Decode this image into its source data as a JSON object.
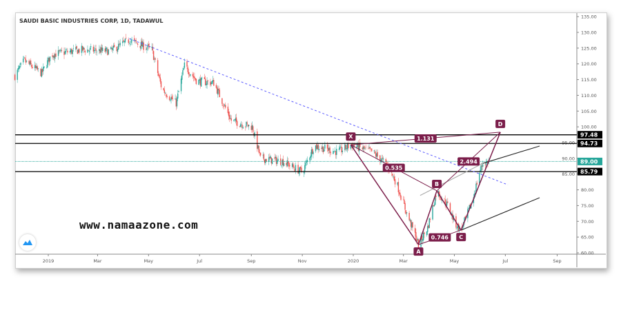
{
  "header": {
    "title": "SAUDI BASIC INDUSTRIES CORP, 1D, TADAWUL"
  },
  "watermark": "www.namaazone.com",
  "colors": {
    "up": "#26a69a",
    "down": "#ef5350",
    "pattern": "#7b1d4a",
    "trendline": "#5b5bff",
    "current": "#26a69a",
    "level": "#000000"
  },
  "icons": {
    "logo": "tradingview-cloud-icon"
  },
  "chart_data": {
    "type": "candlestick",
    "symbol": "SAUDI BASIC INDUSTRIES CORP",
    "interval": "1D",
    "exchange": "TADAWUL",
    "ylim": [
      60,
      135
    ],
    "y_ticks": [
      "135.00",
      "130.00",
      "125.00",
      "120.00",
      "115.00",
      "110.00",
      "105.00",
      "100.00",
      "95.00",
      "90.00",
      "85.00",
      "80.00",
      "75.00",
      "70.00",
      "65.00",
      "60.00"
    ],
    "x_ticks": [
      {
        "label": "2019",
        "date": "2019-01-01"
      },
      {
        "label": "Mar",
        "date": "2019-03-01"
      },
      {
        "label": "May",
        "date": "2019-05-01"
      },
      {
        "label": "Jul",
        "date": "2019-07-01"
      },
      {
        "label": "Sep",
        "date": "2019-09-01"
      },
      {
        "label": "Nov",
        "date": "2019-11-01"
      },
      {
        "label": "2020",
        "date": "2020-01-01"
      },
      {
        "label": "Mar",
        "date": "2020-03-01"
      },
      {
        "label": "May",
        "date": "2020-05-01"
      },
      {
        "label": "Jul",
        "date": "2020-07-01"
      },
      {
        "label": "Sep",
        "date": "2020-09-01"
      }
    ],
    "price_path": [
      [
        "2018-11-22",
        116.2
      ],
      [
        "2018-12-03",
        121
      ],
      [
        "2018-12-24",
        117
      ],
      [
        "2019-01-05",
        123
      ],
      [
        "2019-02-11",
        124.5
      ],
      [
        "2019-03-16",
        124
      ],
      [
        "2019-04-08",
        127.6
      ],
      [
        "2019-05-05",
        124.5
      ],
      [
        "2019-05-17",
        112
      ],
      [
        "2019-06-03",
        107.5
      ],
      [
        "2019-06-13",
        119.5
      ],
      [
        "2019-06-28",
        114.5
      ],
      [
        "2019-07-18",
        114
      ],
      [
        "2019-08-08",
        102
      ],
      [
        "2019-09-02",
        100
      ],
      [
        "2019-09-12",
        90
      ],
      [
        "2019-10-09",
        89
      ],
      [
        "2019-11-01",
        85.6
      ],
      [
        "2019-11-15",
        94
      ],
      [
        "2019-12-14",
        92
      ],
      [
        "2019-12-29",
        94.3
      ],
      [
        "2020-01-24",
        92
      ],
      [
        "2020-02-10",
        88
      ],
      [
        "2020-02-22",
        82
      ],
      [
        "2020-03-05",
        72.5
      ],
      [
        "2020-03-16",
        65
      ],
      [
        "2020-03-19",
        62.6
      ],
      [
        "2020-03-30",
        68
      ],
      [
        "2020-04-10",
        79.7
      ],
      [
        "2020-04-24",
        74.7
      ],
      [
        "2020-05-02",
        69.2
      ],
      [
        "2020-05-09",
        67.2
      ],
      [
        "2020-05-23",
        76.8
      ],
      [
        "2020-05-31",
        85.6
      ],
      [
        "2020-06-04",
        88.4
      ],
      [
        "2020-06-13",
        89
      ]
    ],
    "horizontal_levels": [
      {
        "price": 97.48,
        "label": "97.48"
      },
      {
        "price": 94.73,
        "label": "94.73"
      },
      {
        "price": 85.79,
        "label": "85.79"
      }
    ],
    "current_price": {
      "price": 89.0,
      "label": "89.00"
    },
    "trendline": {
      "from": [
        "2019-04-08",
        128
      ],
      "to": [
        "2020-07-04",
        81.6
      ],
      "style": "dashed"
    },
    "channel_lines": [
      {
        "from": [
          "2020-05-09",
          67.2
        ],
        "to": [
          "2020-08-11",
          77.5
        ]
      },
      {
        "from": [
          "2020-06-04",
          88.4
        ],
        "to": [
          "2020-08-11",
          93.9
        ]
      },
      {
        "from": [
          "2020-03-21",
          78.2
        ],
        "to": [
          "2020-06-04",
          88.4
        ],
        "color": "#aaaaaa"
      }
    ],
    "harmonic_pattern": {
      "points": [
        {
          "name": "X",
          "date": "2019-12-29",
          "price": 94.3
        },
        {
          "name": "A",
          "date": "2020-03-19",
          "price": 62.6
        },
        {
          "name": "B",
          "date": "2020-04-10",
          "price": 79.7
        },
        {
          "name": "C",
          "date": "2020-05-09",
          "price": 67.2
        },
        {
          "name": "D",
          "date": "2020-06-25",
          "price": 98.3
        }
      ],
      "ratios": [
        {
          "label": "0.535",
          "between": [
            "X",
            "B"
          ]
        },
        {
          "label": "0.746",
          "between": [
            "A",
            "C"
          ]
        },
        {
          "label": "2.494",
          "between": [
            "B",
            "D"
          ]
        },
        {
          "label": "1.131",
          "between": [
            "X",
            "D"
          ]
        }
      ]
    }
  }
}
